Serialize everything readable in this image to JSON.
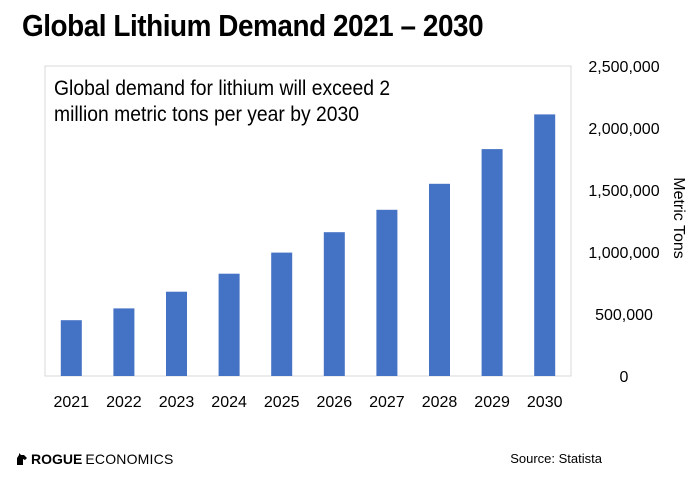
{
  "header": {
    "title": "Global Lithium Demand 2021 – 2030"
  },
  "chart_data": {
    "type": "bar",
    "title": "Global Lithium Demand 2021 – 2030",
    "annotation": "Global demand for lithium will exceed 2 million metric tons per year by 2030",
    "categories": [
      "2021",
      "2022",
      "2023",
      "2024",
      "2025",
      "2026",
      "2027",
      "2028",
      "2029",
      "2030"
    ],
    "values": [
      450000,
      545000,
      680000,
      825000,
      995000,
      1160000,
      1340000,
      1550000,
      1830000,
      2110000
    ],
    "xlabel": "",
    "ylabel": "Metric Tons",
    "ylim": [
      0,
      2500000
    ],
    "yticks": [
      0,
      500000,
      1000000,
      1500000,
      2000000,
      2500000
    ],
    "ytick_labels": [
      "0",
      "500,000",
      "1,000,000",
      "1,500,000",
      "2,000,000",
      "2,500,000"
    ],
    "y_axis_side": "right",
    "grid": false,
    "bar_color": "#4472C4"
  },
  "footer": {
    "logo_bold": "ROGUE",
    "logo_light": "ECONOMICS",
    "logo_icon": "rogue-logo-icon",
    "source": "Source: Statista"
  }
}
